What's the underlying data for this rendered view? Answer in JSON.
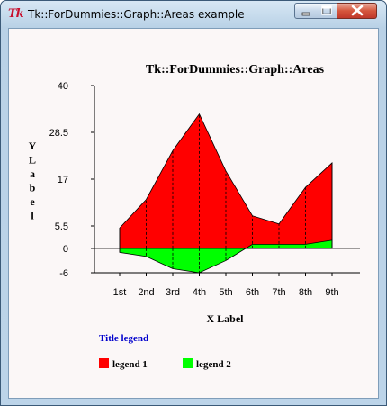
{
  "window": {
    "title": "Tk::ForDummies::Graph::Areas example",
    "icon_text": "Tk",
    "icon": "tk-feather-icon",
    "controls": [
      "minimize-icon",
      "maximize-icon",
      "close-icon"
    ]
  },
  "chart_data": {
    "type": "area",
    "title": "Tk::ForDummies::Graph::Areas",
    "xlabel": "X Label",
    "ylabel": "Y Label",
    "categories": [
      "1st",
      "2nd",
      "3rd",
      "4th",
      "5th",
      "6th",
      "7th",
      "8th",
      "9th"
    ],
    "y_ticks": [
      "40",
      "28.5",
      "17",
      "5.5",
      "0",
      "-6"
    ],
    "y_tick_values": [
      40,
      28.5,
      17,
      5.5,
      0,
      -6
    ],
    "ylim": [
      -6,
      40
    ],
    "legend_title": "Title legend",
    "series": [
      {
        "name": "legend 1",
        "color": "#ff0000",
        "values": [
          5,
          12,
          24,
          33,
          19,
          8,
          6,
          15,
          21
        ]
      },
      {
        "name": "legend 2",
        "color": "#00ff00",
        "values": [
          -1,
          -2,
          -5,
          -6,
          -3,
          1,
          1,
          1,
          2
        ]
      }
    ],
    "colors": {
      "title": "#000000",
      "legend_title": "#0000cc",
      "axes": "#000000"
    }
  }
}
